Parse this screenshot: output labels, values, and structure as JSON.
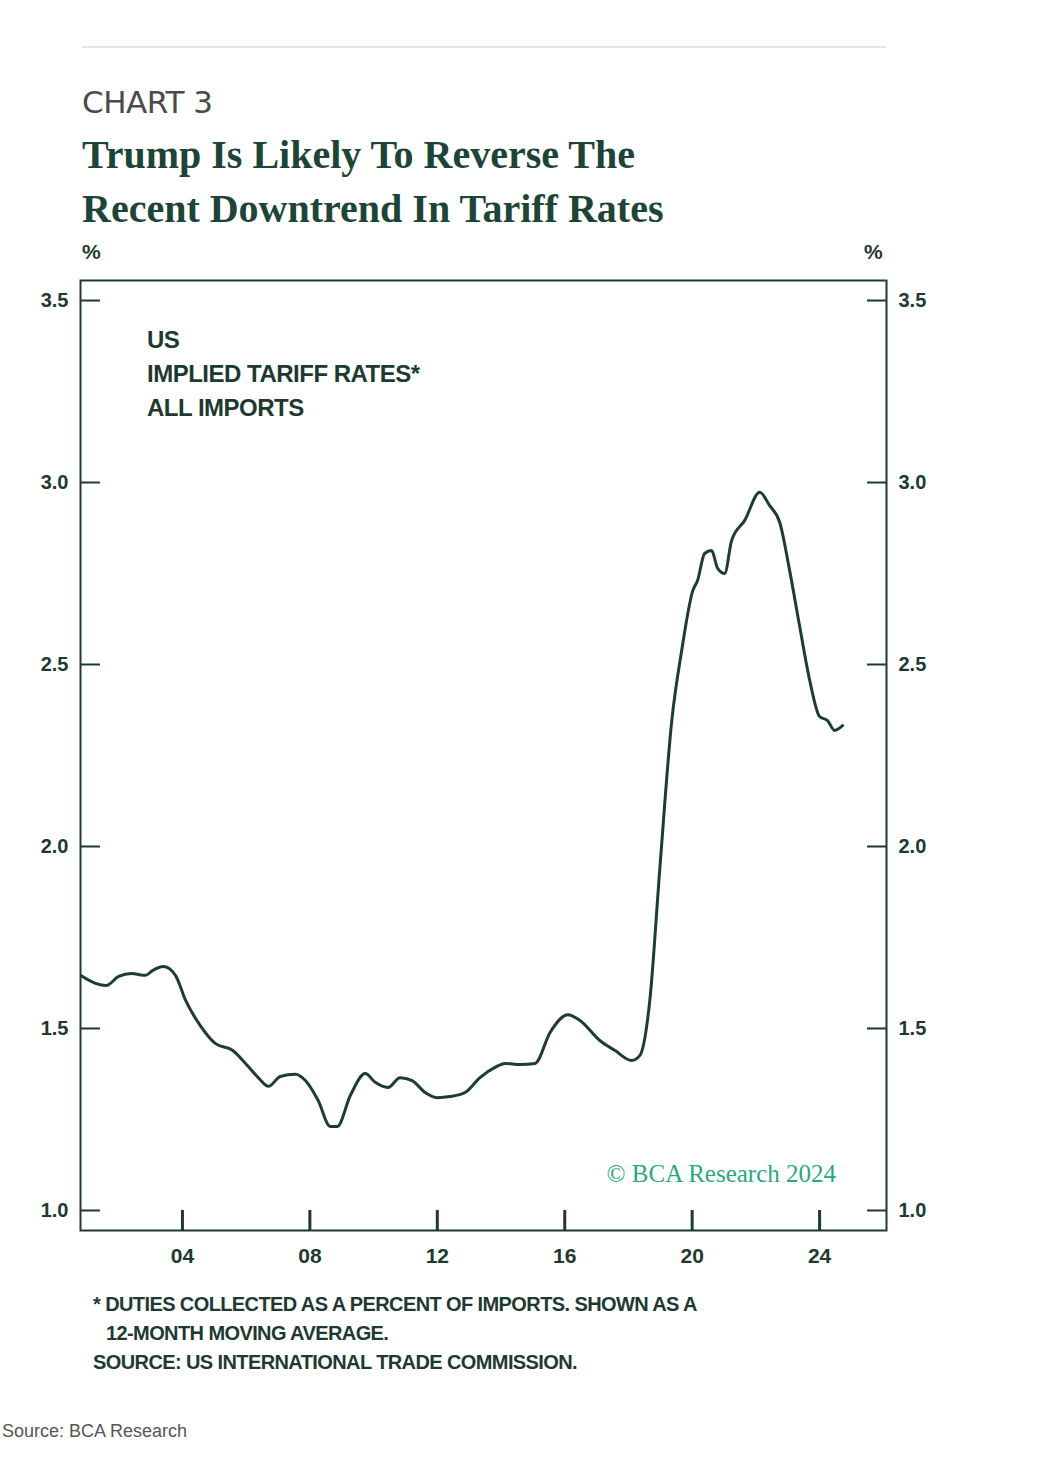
{
  "chart_data": {
    "type": "line",
    "chart_label": "CHART 3",
    "title": "Trump Is Likely To Reverse The Recent Downtrend In Tariff Rates",
    "y_label": "%",
    "y2_label": "%",
    "annotation": [
      "US",
      "IMPLIED TARIFF RATES*",
      "ALL IMPORTS"
    ],
    "watermark": "© BCA Research 2024",
    "footnote": [
      "* DUTIES COLLECTED AS A PERCENT OF IMPORTS. SHOWN AS A",
      "12-MONTH MOVING AVERAGE.",
      "SOURCE: US INTERNATIONAL TRADE COMMISSION."
    ],
    "credit": "Source: BCA Research",
    "color": "#1c3d33",
    "grid": false,
    "x": [
      2000.8,
      2001.27,
      2001.6,
      2002.0,
      2002.4,
      2002.84,
      2003.06,
      2003.4,
      2003.78,
      2004.1,
      2004.56,
      2005.03,
      2005.57,
      2005.98,
      2006.4,
      2006.7,
      2007.07,
      2007.54,
      2007.86,
      2008.26,
      2008.64,
      2008.86,
      2009.27,
      2009.74,
      2010.05,
      2010.46,
      2010.83,
      2011.21,
      2011.62,
      2011.99,
      2012.4,
      2012.87,
      2013.34,
      2013.81,
      2014.13,
      2014.6,
      2015.07,
      2015.54,
      2016.1,
      2016.48,
      2017.1,
      2017.57,
      2018.1,
      2018.36,
      2018.67,
      2018.98,
      2019.36,
      2019.67,
      2020.02,
      2020.17,
      2020.39,
      2020.61,
      2020.8,
      2021.02,
      2021.24,
      2021.65,
      2022.12,
      2022.43,
      2022.75,
      2023.06,
      2023.37,
      2023.69,
      2024.0,
      2024.25,
      2024.47,
      2024.72
    ],
    "values": [
      1.646,
      1.624,
      1.618,
      1.643,
      1.651,
      1.646,
      1.659,
      1.67,
      1.646,
      1.577,
      1.508,
      1.459,
      1.44,
      1.404,
      1.363,
      1.341,
      1.368,
      1.374,
      1.357,
      1.302,
      1.231,
      1.231,
      1.316,
      1.376,
      1.352,
      1.338,
      1.365,
      1.357,
      1.324,
      1.31,
      1.313,
      1.324,
      1.365,
      1.393,
      1.404,
      1.401,
      1.404,
      1.489,
      1.538,
      1.522,
      1.467,
      1.44,
      1.412,
      1.426,
      1.577,
      1.934,
      2.346,
      2.538,
      2.703,
      2.731,
      2.805,
      2.813,
      2.764,
      2.75,
      2.841,
      2.896,
      2.973,
      2.937,
      2.89,
      2.758,
      2.607,
      2.456,
      2.357,
      2.346,
      2.319,
      2.332
    ],
    "xlim": [
      2000.8,
      2026.1
    ],
    "xticks": [
      {
        "value": 2004,
        "label": "04"
      },
      {
        "value": 2008,
        "label": "08"
      },
      {
        "value": 2012,
        "label": "12"
      },
      {
        "value": 2016,
        "label": "16"
      },
      {
        "value": 2020,
        "label": "20"
      },
      {
        "value": 2024,
        "label": "24"
      }
    ],
    "ylim": [
      0.945,
      3.555
    ],
    "yticks": [
      {
        "value": 1,
        "label": "1.0"
      },
      1.5,
      {
        "value": 2,
        "label": "2.0"
      },
      2.5,
      {
        "value": 3,
        "label": "3.0"
      },
      3.5
    ],
    "y2lim": [
      0.945,
      3.555
    ],
    "y2ticks": [
      {
        "value": 1,
        "label": "1.0"
      },
      1.5,
      {
        "value": 2,
        "label": "2.0"
      },
      2.5,
      {
        "value": 3,
        "label": "3.0"
      },
      3.5
    ]
  }
}
